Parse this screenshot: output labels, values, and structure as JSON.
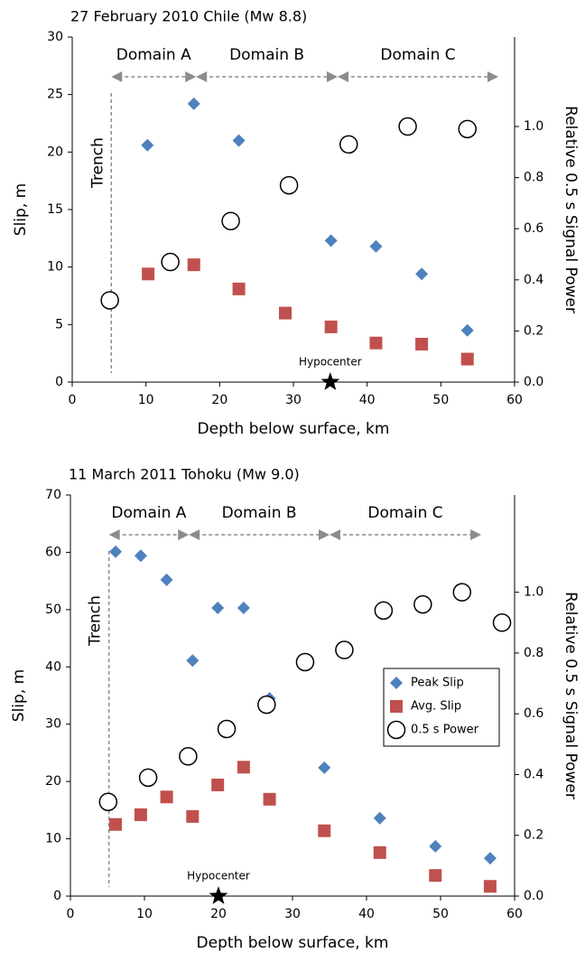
{
  "chart_data": [
    {
      "type": "scatter",
      "title": "27 February 2010 Chile (Mw 8.8)",
      "x_label": "Depth below surface, km",
      "y_label": "Slip, m",
      "y2_label": "Relative 0.5 s Signal Power",
      "xlim": [
        0,
        60
      ],
      "xticks": [
        0,
        10,
        20,
        30,
        40,
        50,
        60
      ],
      "ylim": [
        0,
        30
      ],
      "yticks": [
        0,
        5,
        10,
        15,
        20,
        25,
        30
      ],
      "y2lim": [
        0,
        1.35
      ],
      "y2ticks": [
        {
          "value": 0,
          "label": "0.0"
        },
        0.2,
        0.4,
        0.6,
        0.8,
        {
          "value": 1,
          "label": "1.0"
        }
      ],
      "legend": false,
      "series": [
        {
          "color": "#4f81bd",
          "marker": "diamond",
          "x": [
            10.2,
            16.5,
            22.6,
            35.1,
            41.2,
            47.4,
            53.6
          ],
          "values": [
            20.6,
            24.2,
            21.0,
            12.3,
            11.8,
            9.4,
            4.5
          ]
        },
        {
          "color": "#c0504d",
          "marker": "square",
          "x": [
            10.3,
            16.5,
            22.6,
            28.9,
            35.1,
            41.2,
            47.4,
            53.6
          ],
          "values": [
            9.4,
            10.2,
            8.1,
            6.0,
            4.8,
            3.4,
            3.3,
            2.0
          ]
        },
        {
          "color": "#000000",
          "marker": "circle",
          "axis": "y2",
          "x": [
            5.1,
            13.3,
            21.5,
            29.4,
            37.5,
            45.5,
            53.6
          ],
          "values": [
            0.32,
            0.47,
            0.63,
            0.77,
            0.93,
            1.0,
            0.99
          ]
        }
      ],
      "domains": [
        {
          "label": "Domain A",
          "from": 5.3,
          "to": 16.8
        },
        {
          "label": "Domain B",
          "from": 16.8,
          "to": 36.0
        },
        {
          "label": "Domain C",
          "from": 36.0,
          "to": 57.8
        }
      ],
      "trench": {
        "label": "Trench",
        "x": 5.3
      },
      "hypocenter": {
        "label": "Hypocenter",
        "x": 35,
        "y": 0
      }
    },
    {
      "type": "scatter",
      "title": "11 March 2011 Tohoku (Mw 9.0)",
      "x_label": "Depth below surface, km",
      "y_label": "Slip, m",
      "y2_label": "Relative 0.5 s Signal Power",
      "xlim": [
        0,
        60
      ],
      "xticks": [
        0,
        10,
        20,
        30,
        40,
        50,
        60
      ],
      "ylim": [
        0,
        70
      ],
      "yticks": [
        0,
        10,
        20,
        30,
        40,
        50,
        60,
        70
      ],
      "y2lim": [
        0,
        1.32
      ],
      "y2ticks": [
        {
          "value": 0,
          "label": "0.0"
        },
        0.2,
        0.4,
        0.6,
        0.8,
        {
          "value": 1,
          "label": "1.0"
        }
      ],
      "legend": "center right",
      "series": [
        {
          "name": "Peak Slip",
          "color": "#4f81bd",
          "marker": "diamond",
          "x": [
            6.1,
            9.5,
            13.0,
            19.9,
            23.4,
            16.5,
            26.9,
            34.3,
            41.8,
            49.3,
            56.7
          ],
          "values": [
            60.1,
            59.4,
            55.2,
            50.3,
            50.3,
            41.1,
            34.5,
            22.4,
            13.6,
            8.7,
            6.6
          ]
        },
        {
          "name": "Avg. Slip",
          "color": "#c0504d",
          "marker": "square",
          "x": [
            6.1,
            9.5,
            13.0,
            16.5,
            19.9,
            23.4,
            26.9,
            34.3,
            41.8,
            49.3,
            56.7
          ],
          "values": [
            12.5,
            14.2,
            17.3,
            13.9,
            19.4,
            22.5,
            16.9,
            11.4,
            7.6,
            3.6,
            1.7
          ]
        },
        {
          "name": "0.5 s Power",
          "color": "#000000",
          "marker": "circle",
          "axis": "y2",
          "x": [
            5.1,
            10.5,
            15.9,
            21.1,
            26.5,
            31.7,
            37.0,
            42.3,
            47.6,
            52.9,
            58.3
          ],
          "values": [
            0.31,
            0.39,
            0.46,
            0.55,
            0.63,
            0.77,
            0.81,
            0.94,
            0.96,
            1.0,
            0.9
          ]
        }
      ],
      "domains": [
        {
          "label": "Domain A",
          "from": 5.2,
          "to": 16.0
        },
        {
          "label": "Domain B",
          "from": 16.0,
          "to": 35.0
        },
        {
          "label": "Domain C",
          "from": 35.0,
          "to": 55.5
        }
      ],
      "trench": {
        "label": "Trench",
        "x": 5.2
      },
      "hypocenter": {
        "label": "Hypocenter",
        "x": 20,
        "y": 0
      }
    }
  ]
}
